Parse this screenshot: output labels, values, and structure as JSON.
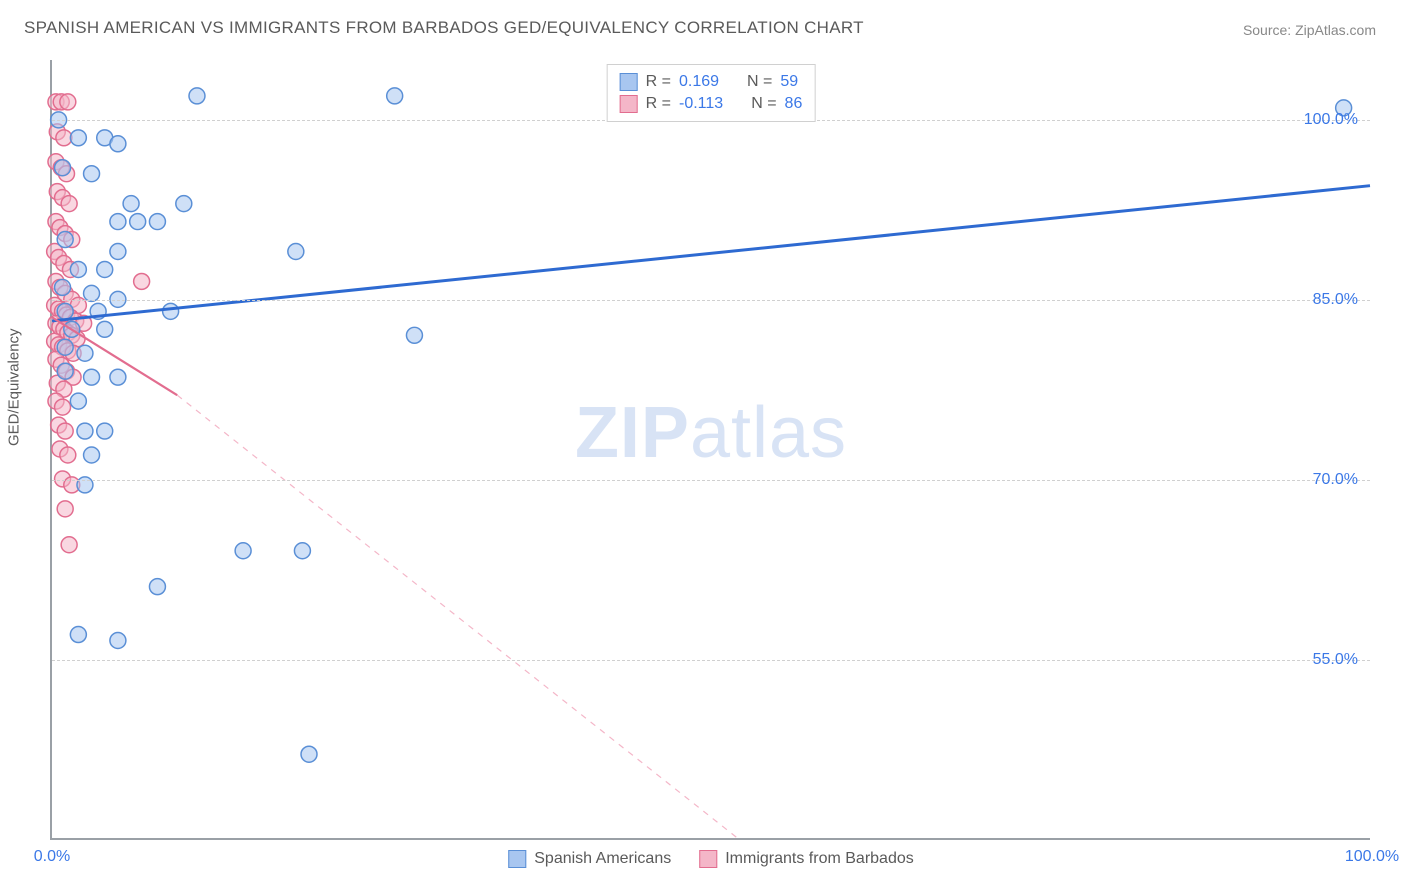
{
  "title": "SPANISH AMERICAN VS IMMIGRANTS FROM BARBADOS GED/EQUIVALENCY CORRELATION CHART",
  "source_label": "Source: ZipAtlas.com",
  "y_axis_title": "GED/Equivalency",
  "watermark": {
    "part1": "ZIP",
    "part2": "atlas"
  },
  "chart": {
    "type": "scatter",
    "xlim": [
      0,
      100
    ],
    "ylim": [
      40,
      105
    ],
    "x_ticks": [
      {
        "value": 0,
        "label": "0.0%"
      },
      {
        "value": 100,
        "label": "100.0%"
      }
    ],
    "y_ticks": [
      {
        "value": 55,
        "label": "55.0%"
      },
      {
        "value": 70,
        "label": "70.0%"
      },
      {
        "value": 85,
        "label": "85.0%"
      },
      {
        "value": 100,
        "label": "100.0%"
      }
    ],
    "grid_color": "#d0d0d0",
    "axis_color": "#9aa0a6",
    "background_color": "#ffffff",
    "marker_radius": 8,
    "marker_stroke_width": 1.5,
    "trend_line_width_solid": 3,
    "trend_line_width_dashed": 1.2,
    "series": {
      "a": {
        "label": "Spanish Americans",
        "fill": "#a8c6f0",
        "stroke": "#5a8fd6",
        "fill_opacity": 0.55,
        "R_label": "R =",
        "R_value": "0.169",
        "N_label": "N =",
        "N_value": "59",
        "trend": {
          "x1": 0,
          "y1": 83.2,
          "x2": 100,
          "y2": 94.5,
          "color": "#2e6ad1"
        },
        "points": [
          [
            0.5,
            100
          ],
          [
            11,
            102
          ],
          [
            26,
            102
          ],
          [
            98,
            101
          ],
          [
            2,
            98.5
          ],
          [
            4,
            98.5
          ],
          [
            5,
            98
          ],
          [
            0.8,
            96
          ],
          [
            3,
            95.5
          ],
          [
            6,
            93
          ],
          [
            10,
            93
          ],
          [
            5,
            91.5
          ],
          [
            6.5,
            91.5
          ],
          [
            8,
            91.5
          ],
          [
            1,
            90
          ],
          [
            5,
            89
          ],
          [
            18.5,
            89
          ],
          [
            2,
            87.5
          ],
          [
            4,
            87.5
          ],
          [
            0.8,
            86
          ],
          [
            3,
            85.5
          ],
          [
            5,
            85
          ],
          [
            1,
            84
          ],
          [
            3.5,
            84
          ],
          [
            9,
            84
          ],
          [
            1.5,
            82.5
          ],
          [
            4,
            82.5
          ],
          [
            1,
            81
          ],
          [
            2.5,
            80.5
          ],
          [
            27.5,
            82
          ],
          [
            1,
            79
          ],
          [
            3,
            78.5
          ],
          [
            5,
            78.5
          ],
          [
            2,
            76.5
          ],
          [
            2.5,
            74
          ],
          [
            4,
            74
          ],
          [
            3,
            72
          ],
          [
            2.5,
            69.5
          ],
          [
            14.5,
            64
          ],
          [
            19,
            64
          ],
          [
            8,
            61
          ],
          [
            2,
            57
          ],
          [
            5,
            56.5
          ],
          [
            19.5,
            47
          ]
        ]
      },
      "b": {
        "label": "Immigrants from Barbados",
        "fill": "#f4b6c8",
        "stroke": "#e26d8f",
        "fill_opacity": 0.55,
        "R_label": "R =",
        "R_value": "-0.113",
        "N_label": "N =",
        "N_value": "86",
        "trend_solid": {
          "x1": 0,
          "y1": 83.5,
          "x2": 9.5,
          "y2": 77,
          "color": "#e26d8f"
        },
        "trend_dashed": {
          "x1": 9.5,
          "y1": 77,
          "x2": 52,
          "y2": 40,
          "color": "#f4b6c8"
        },
        "points": [
          [
            0.3,
            101.5
          ],
          [
            0.7,
            101.5
          ],
          [
            1.2,
            101.5
          ],
          [
            0.4,
            99
          ],
          [
            0.9,
            98.5
          ],
          [
            0.3,
            96.5
          ],
          [
            0.7,
            96
          ],
          [
            1.1,
            95.5
          ],
          [
            0.4,
            94
          ],
          [
            0.8,
            93.5
          ],
          [
            1.3,
            93
          ],
          [
            0.3,
            91.5
          ],
          [
            0.6,
            91
          ],
          [
            1,
            90.5
          ],
          [
            1.5,
            90
          ],
          [
            0.2,
            89
          ],
          [
            0.5,
            88.5
          ],
          [
            0.9,
            88
          ],
          [
            1.4,
            87.5
          ],
          [
            6.8,
            86.5
          ],
          [
            0.3,
            86.5
          ],
          [
            0.6,
            86
          ],
          [
            1,
            85.5
          ],
          [
            1.5,
            85
          ],
          [
            2,
            84.5
          ],
          [
            0.2,
            84.5
          ],
          [
            0.5,
            84.2
          ],
          [
            0.8,
            84
          ],
          [
            1.1,
            83.7
          ],
          [
            1.4,
            83.5
          ],
          [
            1.8,
            83.2
          ],
          [
            2.4,
            83
          ],
          [
            0.3,
            83
          ],
          [
            0.6,
            82.7
          ],
          [
            0.9,
            82.5
          ],
          [
            1.2,
            82.2
          ],
          [
            1.5,
            82
          ],
          [
            1.9,
            81.7
          ],
          [
            0.2,
            81.5
          ],
          [
            0.5,
            81.2
          ],
          [
            0.8,
            81
          ],
          [
            1.2,
            80.7
          ],
          [
            1.6,
            80.5
          ],
          [
            0.3,
            80
          ],
          [
            0.7,
            79.5
          ],
          [
            1.1,
            79
          ],
          [
            1.6,
            78.5
          ],
          [
            0.4,
            78
          ],
          [
            0.9,
            77.5
          ],
          [
            0.3,
            76.5
          ],
          [
            0.8,
            76
          ],
          [
            0.5,
            74.5
          ],
          [
            1,
            74
          ],
          [
            0.6,
            72.5
          ],
          [
            1.2,
            72
          ],
          [
            0.8,
            70
          ],
          [
            1.5,
            69.5
          ],
          [
            1,
            67.5
          ],
          [
            1.3,
            64.5
          ]
        ]
      }
    }
  }
}
